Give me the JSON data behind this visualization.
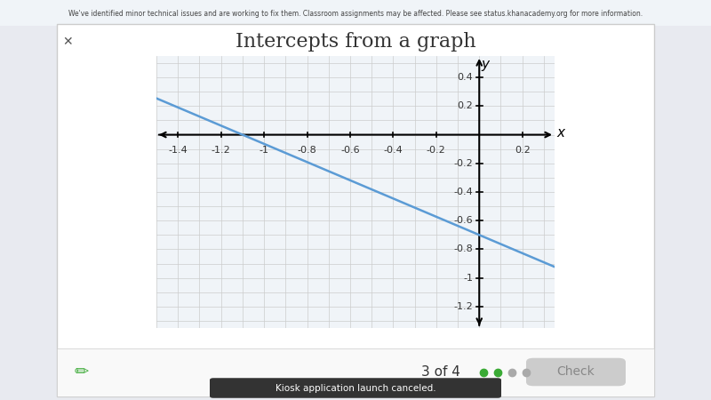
{
  "title": "Intercepts from a graph",
  "title_fontsize": 16,
  "title_color": "#333333",
  "bg_color": "#ffffff",
  "dialog_bg": "#ffffff",
  "ax_bg": "#f0f4f8",
  "grid_color": "#cccccc",
  "line_color": "#5b9bd5",
  "line_width": 1.8,
  "x_label": "x",
  "y_label": "y",
  "xlim": [
    -1.5,
    0.35
  ],
  "ylim": [
    -1.35,
    0.55
  ],
  "xticks": [
    -1.4,
    -1.2,
    -1.0,
    -0.8,
    -0.6,
    -0.4,
    -0.2,
    0.2
  ],
  "yticks": [
    -1.2,
    -1.0,
    -0.8,
    -0.6,
    -0.4,
    -0.2,
    0.2,
    0.4
  ],
  "x_intercept": -1.1,
  "y_intercept": -0.7,
  "line_x_start": -1.5,
  "line_x_end": 0.35,
  "slope": -0.636363636,
  "figsize": [
    8.0,
    4.5
  ],
  "dpi": 100,
  "subtitle_text": "3 of 4",
  "banner_text": "We've identified minor technical issues and are working to fix them. Classroom assignments may be affected. Please see status.khanacademy.org for more information.",
  "bottom_text": "Kiosk application launch canceled."
}
